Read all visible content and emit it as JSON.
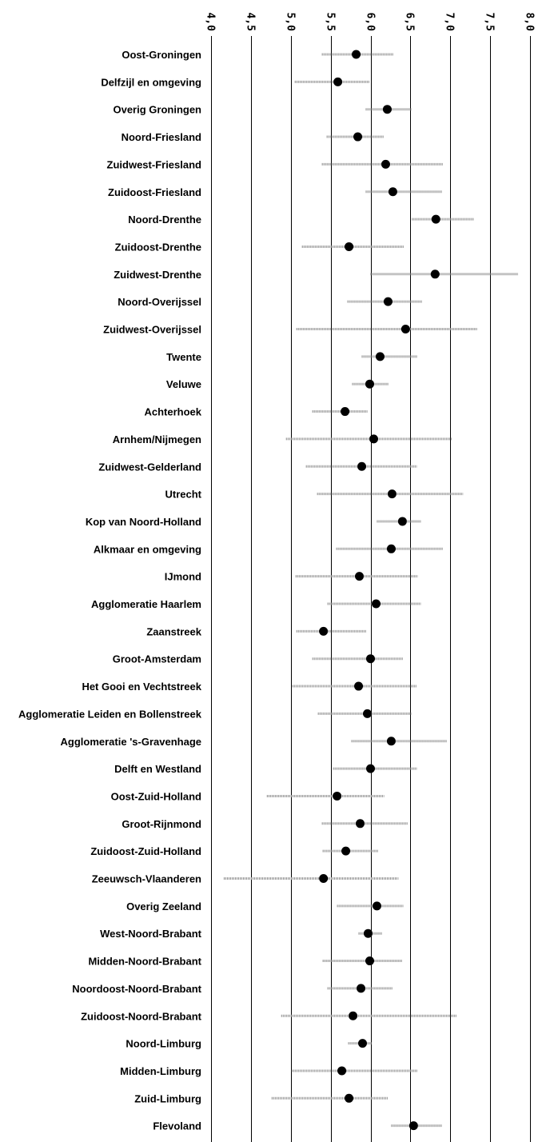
{
  "chart_data": {
    "type": "scatter",
    "orientation": "horizontal",
    "title": "",
    "xlabel": "",
    "ylabel": "",
    "xlim": [
      4.0,
      8.0
    ],
    "x_ticks": [
      "4,0",
      "4,5",
      "5,0",
      "5,5",
      "6,0",
      "6,5",
      "7,0",
      "7,5",
      "8,0"
    ],
    "x_tick_values": [
      4.0,
      4.5,
      5.0,
      5.5,
      6.0,
      6.5,
      7.0,
      7.5,
      8.0
    ],
    "grid": "vertical",
    "legend": "none",
    "colors": {
      "point": "#000000",
      "interval": "#8a8a8a",
      "grid": "#000000"
    },
    "series": [
      {
        "categories": [
          "Oost-Groningen",
          "Delfzijl en omgeving",
          "Overig Groningen",
          "Noord-Friesland",
          "Zuidwest-Friesland",
          "Zuidoost-Friesland",
          "Noord-Drenthe",
          "Zuidoost-Drenthe",
          "Zuidwest-Drenthe",
          "Noord-Overijssel",
          "Zuidwest-Overijssel",
          "Twente",
          "Veluwe",
          "Achterhoek",
          "Arnhem/Nijmegen",
          "Zuidwest-Gelderland",
          "Utrecht",
          "Kop van Noord-Holland",
          "Alkmaar en omgeving",
          "IJmond",
          "Agglomeratie Haarlem",
          "Zaanstreek",
          "Groot-Amsterdam",
          "Het Gooi en Vechtstreek",
          "Agglomeratie Leiden en Bollenstreek",
          "Agglomeratie 's-Gravenhage",
          "Delft en Westland",
          "Oost-Zuid-Holland",
          "Groot-Rijnmond",
          "Zuidoost-Zuid-Holland",
          "Zeeuwsch-Vlaanderen",
          "Overig Zeeland",
          "West-Noord-Brabant",
          "Midden-Noord-Brabant",
          "Noordoost-Noord-Brabant",
          "Zuidoost-Noord-Brabant",
          "Noord-Limburg",
          "Midden-Limburg",
          "Zuid-Limburg",
          "Flevoland"
        ],
        "values": [
          5.82,
          5.59,
          6.21,
          5.84,
          6.19,
          6.28,
          6.82,
          5.73,
          6.81,
          6.22,
          6.44,
          6.12,
          5.99,
          5.68,
          6.04,
          5.89,
          6.27,
          6.4,
          6.26,
          5.86,
          6.07,
          5.41,
          6.0,
          5.85,
          5.96,
          6.26,
          6.0,
          5.58,
          5.87,
          5.69,
          5.41,
          6.08,
          5.97,
          5.99,
          5.88,
          5.78,
          5.9,
          5.64,
          5.73,
          6.54
        ],
        "lower": [
          5.39,
          5.05,
          5.94,
          5.45,
          5.39,
          5.94,
          6.52,
          5.14,
          6.0,
          5.71,
          5.07,
          5.89,
          5.77,
          5.27,
          4.94,
          5.19,
          5.33,
          6.08,
          5.57,
          5.06,
          5.46,
          5.07,
          5.27,
          5.02,
          5.34,
          5.76,
          5.53,
          4.7,
          5.39,
          5.4,
          4.16,
          5.58,
          5.85,
          5.4,
          5.46,
          4.88,
          5.72,
          5.01,
          4.76,
          6.26
        ],
        "upper": [
          6.29,
          5.99,
          6.51,
          6.17,
          6.91,
          6.9,
          7.3,
          6.42,
          7.85,
          6.65,
          7.34,
          6.59,
          6.23,
          5.96,
          7.02,
          6.58,
          7.16,
          6.63,
          6.91,
          6.59,
          6.63,
          5.95,
          6.41,
          6.58,
          6.51,
          6.96,
          6.58,
          6.17,
          6.47,
          6.1,
          6.35,
          6.41,
          6.15,
          6.4,
          6.28,
          7.08,
          6.02,
          6.59,
          6.22,
          6.9
        ]
      }
    ]
  }
}
